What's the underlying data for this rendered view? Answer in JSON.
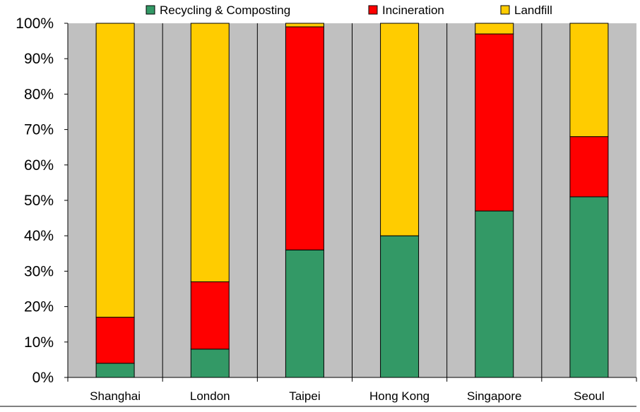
{
  "chart_data": {
    "type": "bar",
    "stacked": true,
    "title": "",
    "xlabel": "",
    "ylabel": "",
    "ylim": [
      0,
      100
    ],
    "y_unit": "%",
    "y_ticks": [
      "0%",
      "10%",
      "20%",
      "30%",
      "40%",
      "50%",
      "60%",
      "70%",
      "80%",
      "90%",
      "100%"
    ],
    "categories": [
      "Shanghai",
      "London",
      "Taipei",
      "Hong Kong",
      "Singapore",
      "Seoul"
    ],
    "series": [
      {
        "name": "Recycling & Composting",
        "color": "#339966",
        "values": [
          4,
          8,
          36,
          40,
          47,
          51
        ]
      },
      {
        "name": "Incineration",
        "color": "#ff0000",
        "values": [
          13,
          19,
          63,
          0,
          50,
          17
        ]
      },
      {
        "name": "Landfill",
        "color": "#ffcc00",
        "values": [
          83,
          73,
          1,
          60,
          3,
          32
        ]
      }
    ],
    "legend_position": "top",
    "grid": "vertical",
    "plot_background": "#c0c0c0"
  }
}
